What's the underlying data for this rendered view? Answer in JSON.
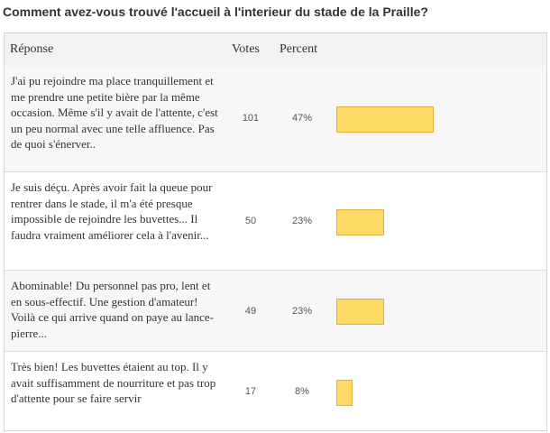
{
  "question": "Comment avez-vous trouvé l'accueil à l'interieur du stade de la Praille?",
  "headers": {
    "answer": "Réponse",
    "votes": "Votes",
    "percent": "Percent"
  },
  "rows": [
    {
      "answer": "J'ai pu rejoindre ma place tranquillement et me prendre une petite bière par la même occasion. Même s'il y avait de l'attente, c'est un peu normal avec une telle affluence. Pas de quoi s'énerver..",
      "votes": "101",
      "percent": "47%",
      "fraction": 0.47
    },
    {
      "answer": "Je suis déçu. Après avoir fait la queue pour rentrer dans le stade, il m'a été presque impossible de rejoindre les buvettes... Il faudra vraiment améliorer cela à l'avenir...",
      "votes": "50",
      "percent": "23%",
      "fraction": 0.23
    },
    {
      "answer": "Abominable! Du personnel pas pro, lent et en sous-effectif. Une gestion d'amateur! Voilà ce qui arrive quand on paye au lance-pierre...",
      "votes": "49",
      "percent": "23%",
      "fraction": 0.23
    },
    {
      "answer": "Très bien! Les buvettes étaient au top. Il y avait suffisamment de nourriture et pas trop d'attente pour se faire servir",
      "votes": "17",
      "percent": "8%",
      "fraction": 0.08
    }
  ],
  "colors": {
    "bar_fill": "#ffd966",
    "bar_border": "#e5b03a"
  }
}
